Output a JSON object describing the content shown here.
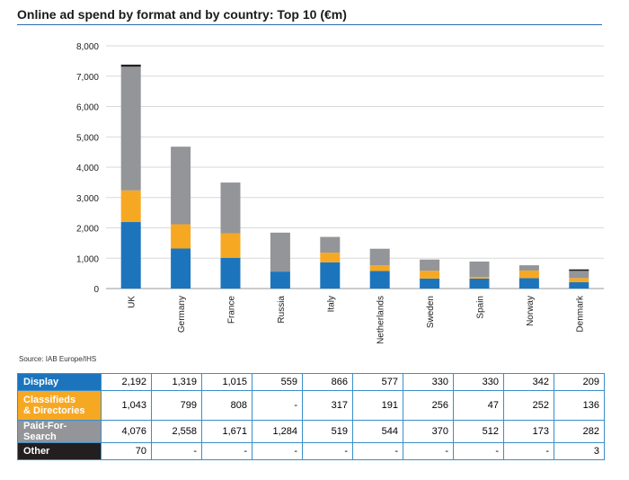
{
  "title": "Online ad spend by format and by country: Top 10 (€m)",
  "source": "Source: IAB Europe/IHS",
  "colors": {
    "display": "#1c75bc",
    "classifieds": "#f7a823",
    "search": "#939598",
    "other": "#231f20",
    "rule": "#2a6db0"
  },
  "chart_data": {
    "type": "bar",
    "stacked": true,
    "title": "Online ad spend by format and by country: Top 10 (€m)",
    "xlabel": "",
    "ylabel": "",
    "ylim": [
      0,
      8000
    ],
    "yticks": [
      "0",
      "1,000",
      "2,000",
      "3,000",
      "4,000",
      "5,000",
      "6,000",
      "7,000",
      "8,000"
    ],
    "grid": true,
    "categories": [
      "UK",
      "Germany",
      "France",
      "Russia",
      "Italy",
      "Netherlands",
      "Sweden",
      "Spain",
      "Norway",
      "Denmark"
    ],
    "series": [
      {
        "name": "Display",
        "values": [
          2192,
          1319,
          1015,
          559,
          866,
          577,
          330,
          330,
          342,
          209
        ]
      },
      {
        "name": "Classifieds & Directories",
        "values": [
          1043,
          799,
          808,
          0,
          317,
          191,
          256,
          47,
          252,
          136
        ]
      },
      {
        "name": "Paid-For-Search",
        "values": [
          4076,
          2558,
          1671,
          1284,
          519,
          544,
          370,
          512,
          173,
          282
        ]
      },
      {
        "name": "Other",
        "values": [
          70,
          0,
          0,
          0,
          0,
          0,
          0,
          0,
          0,
          3
        ]
      }
    ]
  },
  "table": {
    "rows": [
      {
        "label": "Display",
        "color": "#1c75bc",
        "cells": [
          "2,192",
          "1,319",
          "1,015",
          "559",
          "866",
          "577",
          "330",
          "330",
          "342",
          "209"
        ]
      },
      {
        "label_line1": "Classifieds",
        "label_line2": "& Directories",
        "color": "#f7a823",
        "cells": [
          "1,043",
          "799",
          "808",
          "-",
          "317",
          "191",
          "256",
          "47",
          "252",
          "136"
        ]
      },
      {
        "label": "Paid-For-Search",
        "color": "#939598",
        "cells": [
          "4,076",
          "2,558",
          "1,671",
          "1,284",
          "519",
          "544",
          "370",
          "512",
          "173",
          "282"
        ]
      },
      {
        "label": "Other",
        "color": "#231f20",
        "cells": [
          "70",
          "-",
          "-",
          "-",
          "-",
          "-",
          "-",
          "-",
          "-",
          "3"
        ]
      }
    ]
  }
}
